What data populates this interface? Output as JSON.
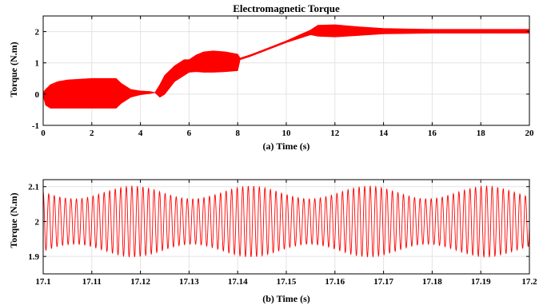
{
  "chart_data": [
    {
      "type": "line",
      "title": "Electromagnetic Torque",
      "xlabel": "(a)  Time (s)",
      "ylabel": "Torque (N.m)",
      "xlim": [
        0,
        20
      ],
      "ylim": [
        -1,
        2.5
      ],
      "xticks": [
        0,
        2,
        4,
        6,
        8,
        10,
        12,
        14,
        16,
        18,
        20
      ],
      "xtick_labels": [
        "0",
        "2",
        "4",
        "6",
        "8",
        "10",
        "12",
        "14",
        "16",
        "18",
        "20"
      ],
      "yticks": [
        -1,
        0,
        1,
        2
      ],
      "ytick_labels": [
        "-1",
        "0",
        "1",
        "2"
      ],
      "grid": true,
      "line_color": "#ff0000",
      "series": [
        {
          "x": [
            0,
            0.1,
            0.3,
            0.6,
            1.0,
            2.0,
            3.0,
            3.2,
            3.6,
            4.0,
            4.4,
            4.6,
            4.8,
            5.0,
            5.4,
            5.8,
            6.0,
            6.3,
            6.6,
            7.0,
            7.5,
            8.0,
            8.1,
            8.5,
            9.0,
            10.0,
            11.0,
            11.3,
            12.0,
            13.0,
            14.0,
            16.0,
            18.0,
            20.0
          ],
          "upper": [
            0.05,
            0.15,
            0.3,
            0.4,
            0.45,
            0.5,
            0.5,
            0.35,
            0.15,
            0.1,
            0.08,
            0.05,
            0.3,
            0.6,
            0.9,
            1.1,
            1.1,
            1.25,
            1.35,
            1.38,
            1.35,
            1.28,
            1.15,
            1.25,
            1.4,
            1.7,
            2.05,
            2.2,
            2.22,
            2.15,
            2.1,
            2.07,
            2.07,
            2.07
          ],
          "lower": [
            -0.05,
            -0.35,
            -0.45,
            -0.45,
            -0.45,
            -0.45,
            -0.45,
            -0.3,
            -0.1,
            -0.02,
            0.02,
            0.05,
            -0.1,
            0.0,
            0.4,
            0.6,
            0.7,
            0.72,
            0.7,
            0.7,
            0.72,
            0.75,
            1.1,
            1.2,
            1.35,
            1.65,
            1.9,
            1.85,
            1.83,
            1.88,
            1.93,
            1.95,
            1.95,
            1.95
          ]
        }
      ]
    },
    {
      "type": "line",
      "title": "",
      "xlabel": "(b)  Time (s)",
      "ylabel": "Torque (N.m)",
      "xlim": [
        17.1,
        17.2
      ],
      "ylim": [
        1.85,
        2.12
      ],
      "xticks": [
        17.1,
        17.11,
        17.12,
        17.13,
        17.14,
        17.15,
        17.16,
        17.17,
        17.18,
        17.19,
        17.2
      ],
      "xtick_labels": [
        "17.1",
        "17.11",
        "17.12",
        "17.13",
        "17.14",
        "17.15",
        "17.16",
        "17.17",
        "17.18",
        "17.19",
        "17.2"
      ],
      "yticks": [
        1.9,
        2.0,
        2.1
      ],
      "ytick_labels": [
        "1.9",
        "2",
        "2.1"
      ],
      "grid": true,
      "line_color": "#ff0000",
      "signal": {
        "center": 2.0,
        "amplitude_mean": 0.083,
        "amplitude_variation": 0.018,
        "envelope_period": 0.0242,
        "envelope_peak_at": 17.1185,
        "oscillation_period": 0.00114
      }
    }
  ]
}
